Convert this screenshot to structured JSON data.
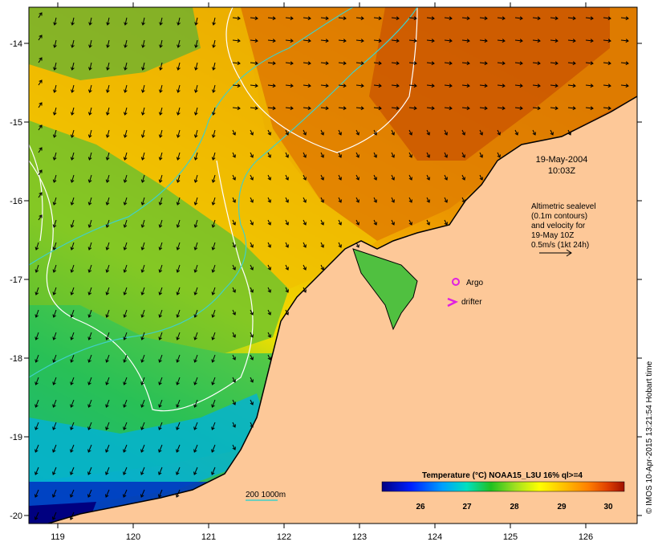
{
  "date_line": "19-May-2004",
  "time_line": "10:03Z",
  "altimetry_lines": [
    "Altimetric sealevel",
    "(0.1m contours)",
    "and velocity for",
    "19-May 10Z",
    "0.5m/s (1kt 24h)"
  ],
  "legend": {
    "argo": "Argo",
    "drifter": "drifter"
  },
  "depth_label": "200  1000m",
  "colorbar": {
    "title": "Temperature (°C) NOAA15_L3U 16% ql>=4",
    "ticks": [
      "26",
      "27",
      "28",
      "29",
      "30"
    ]
  },
  "credit": "© IMOS 10-Apr-2015 13:21:54 Hobart time",
  "axes": {
    "lon_ticks": [
      "119",
      "120",
      "121",
      "122",
      "123",
      "124",
      "125",
      "126"
    ],
    "lat_ticks": [
      "-14",
      "-15",
      "-16",
      "-17",
      "-18",
      "-19",
      "-20"
    ]
  },
  "colors": {
    "land": "#fdc898",
    "contour": "#ffffff",
    "isobath": "#40d0c8",
    "argo": "#e020e0",
    "drifter": "#e020e0"
  }
}
